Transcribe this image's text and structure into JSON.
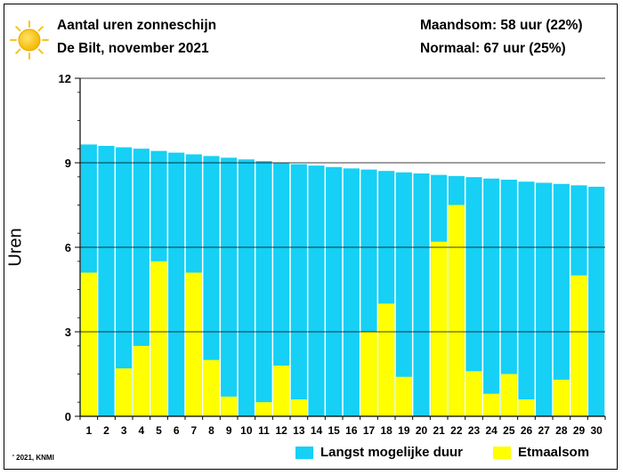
{
  "header": {
    "title": "Aantal uren zonneschijn",
    "subtitle": "De Bilt, november 2021",
    "month_total": "Maandsom: 58 uur (22%)",
    "normal": "Normaal: 67 uur (25%)"
  },
  "footer": {
    "copyright": "' 2021, KNMI"
  },
  "icons": {
    "sun": "sun-icon"
  },
  "colors": {
    "max_duration": "#16d0f5",
    "daily_sum": "#ffff00",
    "background": "#ffffff"
  },
  "chart_data": {
    "type": "bar",
    "ylabel": "Uren",
    "ylim": [
      0,
      12
    ],
    "yticks": [
      0,
      3,
      6,
      9,
      12
    ],
    "grid": true,
    "categories": [
      "1",
      "2",
      "3",
      "4",
      "5",
      "6",
      "7",
      "8",
      "9",
      "10",
      "11",
      "12",
      "13",
      "14",
      "15",
      "16",
      "17",
      "18",
      "19",
      "20",
      "21",
      "22",
      "23",
      "24",
      "25",
      "26",
      "27",
      "28",
      "29",
      "30"
    ],
    "series": [
      {
        "name": "Langst mogelijke duur",
        "color": "#16d0f5",
        "values": [
          9.65,
          9.6,
          9.55,
          9.5,
          9.42,
          9.36,
          9.3,
          9.24,
          9.18,
          9.12,
          9.06,
          9.0,
          8.95,
          8.9,
          8.85,
          8.8,
          8.76,
          8.71,
          8.66,
          8.62,
          8.57,
          8.53,
          8.49,
          8.44,
          8.4,
          8.33,
          8.29,
          8.25,
          8.2,
          8.15
        ]
      },
      {
        "name": "Etmaalsom",
        "color": "#ffff00",
        "values": [
          5.1,
          0,
          1.7,
          2.5,
          5.5,
          0,
          5.1,
          2.0,
          0.7,
          0,
          0.5,
          1.8,
          0.6,
          0,
          0,
          0,
          3.0,
          4.0,
          1.4,
          0,
          6.2,
          7.5,
          1.6,
          0.8,
          1.5,
          0.6,
          0,
          1.3,
          5.0,
          0
        ]
      }
    ],
    "legend": "bottom-right"
  }
}
